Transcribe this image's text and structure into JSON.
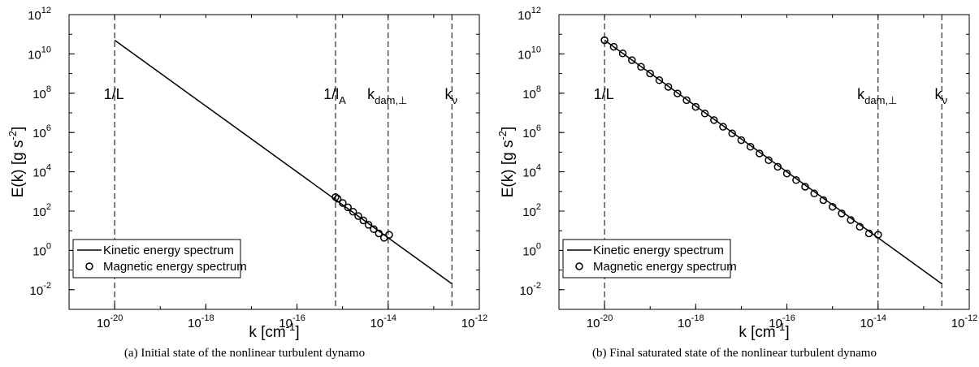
{
  "captions": [
    "(a)  Initial state of the nonlinear turbulent dynamo",
    "(b)  Final saturated state of the nonlinear turbulent dynamo"
  ],
  "colors": {
    "line": "#000000",
    "background": "#ffffff"
  },
  "chart_data": [
    {
      "type": "line",
      "xscale": "log",
      "yscale": "log",
      "xlabel": "k [cm",
      "xlabel_sup": "-1",
      "xlabel_end": "]",
      "ylabel": "E(k) [g s",
      "ylabel_sup": "-2",
      "ylabel_end": "]",
      "xlim": [
        1e-21,
        1e-12
      ],
      "ylim": [
        0.001,
        1000000000000.0
      ],
      "x_ticks": [
        1e-20,
        1e-18,
        1e-16,
        1e-14,
        1e-12
      ],
      "x_tick_exponents": [
        "-20",
        "-18",
        "-16",
        "-14",
        "-12"
      ],
      "y_ticks": [
        0.01,
        1,
        100,
        10000,
        1000000.0,
        100000000.0,
        10000000000.0,
        1000000000000.0
      ],
      "y_tick_exponents": [
        "-2",
        "0",
        "2",
        "4",
        "6",
        "8",
        "10",
        "12"
      ],
      "grid": false,
      "legend_position": "bottom-left",
      "series": [
        {
          "name": "Kinetic energy spectrum",
          "style": "solid-line",
          "x": [
            1e-20,
            2.5e-13
          ],
          "y": [
            50000000000.0,
            0.02
          ]
        },
        {
          "name": "Magnetic energy spectrum",
          "style": "open-circles",
          "x": [
            7e-16,
            7.79e-16,
            1.01e-15,
            1.31e-15,
            1.7e-15,
            2.21e-15,
            2.86e-15,
            3.71e-15,
            4.82e-15,
            6.25e-15,
            8.11e-15,
            1.05e-14
          ],
          "y": [
            520,
            430,
            258,
            155,
            93,
            56,
            33.5,
            20.1,
            12.1,
            7.3,
            4.35,
            6.3
          ]
        }
      ],
      "vlines": [
        {
          "x": 1e-20,
          "label": "1/L",
          "label_sub": ""
        },
        {
          "x": 7e-16,
          "label": "1/l",
          "label_sub": "A"
        },
        {
          "x": 1e-14,
          "label": "k",
          "label_sub": "dam,⊥"
        },
        {
          "x": 2.5e-13,
          "label": "k",
          "label_sub": "ν"
        }
      ]
    },
    {
      "type": "line",
      "xscale": "log",
      "yscale": "log",
      "xlabel": "k [cm",
      "xlabel_sup": "-1",
      "xlabel_end": "]",
      "ylabel": "E(k) [g s",
      "ylabel_sup": "-2",
      "ylabel_end": "]",
      "xlim": [
        1e-21,
        1e-12
      ],
      "ylim": [
        0.001,
        1000000000000.0
      ],
      "x_ticks": [
        1e-20,
        1e-18,
        1e-16,
        1e-14,
        1e-12
      ],
      "x_tick_exponents": [
        "-20",
        "-18",
        "-16",
        "-14",
        "-12"
      ],
      "y_ticks": [
        0.01,
        1,
        100,
        10000,
        1000000.0,
        100000000.0,
        10000000000.0,
        1000000000000.0
      ],
      "y_tick_exponents": [
        "-2",
        "0",
        "2",
        "4",
        "6",
        "8",
        "10",
        "12"
      ],
      "grid": false,
      "legend_position": "bottom-left",
      "series": [
        {
          "name": "Kinetic energy spectrum",
          "style": "solid-line",
          "x": [
            1e-20,
            2.5e-13
          ],
          "y": [
            50000000000.0,
            0.02
          ]
        },
        {
          "name": "Magnetic energy spectrum",
          "style": "open-circles",
          "x": [
            1e-20,
            1.59e-20,
            2.51e-20,
            3.98e-20,
            6.31e-20,
            1e-19,
            1.59e-19,
            2.51e-19,
            3.98e-19,
            6.31e-19,
            1e-18,
            1.59e-18,
            2.51e-18,
            3.98e-18,
            6.31e-18,
            1e-17,
            1.59e-17,
            2.51e-17,
            3.98e-17,
            6.31e-17,
            1e-16,
            1.59e-16,
            2.51e-16,
            3.98e-16,
            6.31e-16,
            1e-15,
            1.59e-15,
            2.51e-15,
            3.98e-15,
            6.31e-15,
            1e-14
          ],
          "y": [
            50000000000.0,
            23000000000.0,
            10600000000.0,
            4800000000.0,
            2200000000.0,
            1010000000.0,
            460000000.0,
            210000000.0,
            97000000.0,
            44000000.0,
            20300000.0,
            9300000.0,
            4300000.0,
            1960000.0,
            900000.0,
            410000.0,
            189000.0,
            86000.0,
            39000.0,
            18100.0,
            8200.0,
            3800.0,
            1730.0,
            790,
            360,
            166,
            76,
            35,
            16,
            7.3,
            6.3
          ]
        }
      ],
      "vlines": [
        {
          "x": 1e-20,
          "label": "1/L",
          "label_sub": ""
        },
        {
          "x": 1e-14,
          "label": "k",
          "label_sub": "dam,⊥"
        },
        {
          "x": 2.5e-13,
          "label": "k",
          "label_sub": "ν"
        }
      ]
    }
  ]
}
